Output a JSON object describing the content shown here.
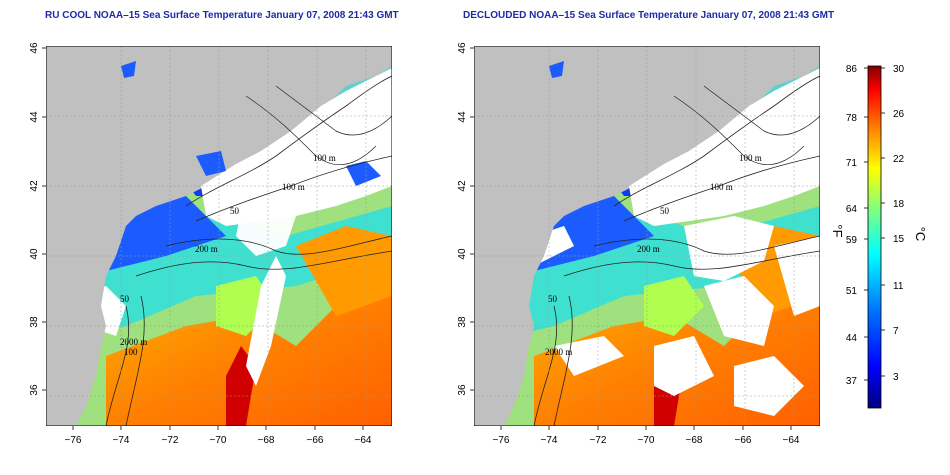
{
  "panels": [
    {
      "title": "RU COOL NOAA–15 Sea Surface Temperature January 07, 2008 21:43 GMT"
    },
    {
      "title": "DECLOUDED NOAA–15 Sea Surface Temperature January 07, 2008 21:43 GMT"
    }
  ],
  "axes": {
    "lat_ticks": [
      "36",
      "38",
      "40",
      "42",
      "44",
      "46"
    ],
    "lon_ticks": [
      "−76",
      "−74",
      "−72",
      "−70",
      "−68",
      "−66",
      "−64"
    ]
  },
  "contour_labels": {
    "left": [
      "100 m",
      "100 m",
      "200 m",
      "50",
      "50",
      "100",
      "2000 m"
    ],
    "right": [
      "100 m",
      "100 m",
      "200 m",
      "50",
      "50",
      "2000 m"
    ]
  },
  "colorbar": {
    "fahrenheit_ticks": [
      "86",
      "78",
      "71",
      "64",
      "59",
      "51",
      "44",
      "37"
    ],
    "celsius_ticks": [
      "30",
      "26",
      "22",
      "18",
      "15",
      "11",
      "7",
      "3"
    ],
    "fahrenheit_label": "°F",
    "celsius_label": "°C",
    "colors": [
      "#00007f",
      "#0000ff",
      "#007fff",
      "#00ffff",
      "#7fff7f",
      "#ffff00",
      "#ff7f00",
      "#ff0000",
      "#7f0000"
    ]
  },
  "colors": {
    "land": "#c0c0c0",
    "cloud": "#ffffff",
    "title": "#1f2aa8"
  }
}
